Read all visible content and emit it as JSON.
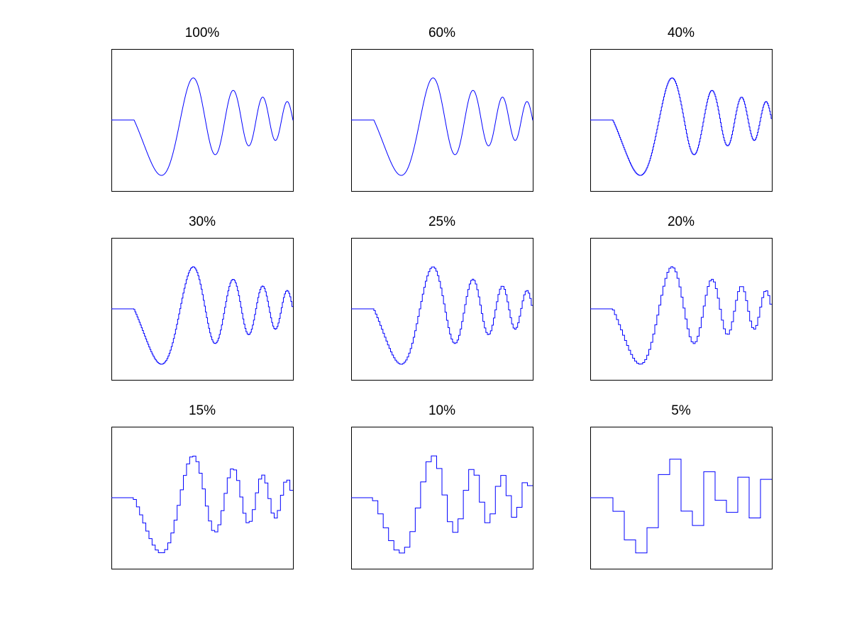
{
  "figure": {
    "background": "#ffffff",
    "line_color": "#0000ff",
    "axes_color": "#000000"
  },
  "chart_data": [
    {
      "type": "line",
      "title": "100%",
      "steps": 0,
      "xlim": [
        0,
        1
      ],
      "ylim": [
        -1,
        1
      ],
      "xticks": [],
      "yticks": []
    },
    {
      "type": "line",
      "title": "60%",
      "steps": 0,
      "xlim": [
        0,
        1
      ],
      "ylim": [
        -1,
        1
      ],
      "xticks": [],
      "yticks": []
    },
    {
      "type": "line",
      "title": "40%",
      "steps": 240,
      "xlim": [
        0,
        1
      ],
      "ylim": [
        -1,
        1
      ],
      "xticks": [],
      "yticks": []
    },
    {
      "type": "line",
      "title": "30%",
      "steps": 170,
      "xlim": [
        0,
        1
      ],
      "ylim": [
        -1,
        1
      ],
      "xticks": [],
      "yticks": []
    },
    {
      "type": "line",
      "title": "25%",
      "steps": 120,
      "xlim": [
        0,
        1
      ],
      "ylim": [
        -1,
        1
      ],
      "xticks": [],
      "yticks": []
    },
    {
      "type": "line",
      "title": "20%",
      "steps": 90,
      "xlim": [
        0,
        1
      ],
      "ylim": [
        -1,
        1
      ],
      "xticks": [],
      "yticks": []
    },
    {
      "type": "line",
      "title": "15%",
      "steps": 58,
      "xlim": [
        0,
        1
      ],
      "ylim": [
        -1,
        1
      ],
      "xticks": [],
      "yticks": []
    },
    {
      "type": "line",
      "title": "10%",
      "steps": 34,
      "xlim": [
        0,
        1
      ],
      "ylim": [
        -1,
        1
      ],
      "xticks": [],
      "yticks": []
    },
    {
      "type": "line",
      "title": "5%",
      "steps": 16,
      "xlim": [
        0,
        1
      ],
      "ylim": [
        -1,
        1
      ],
      "xticks": [],
      "yticks": []
    }
  ]
}
